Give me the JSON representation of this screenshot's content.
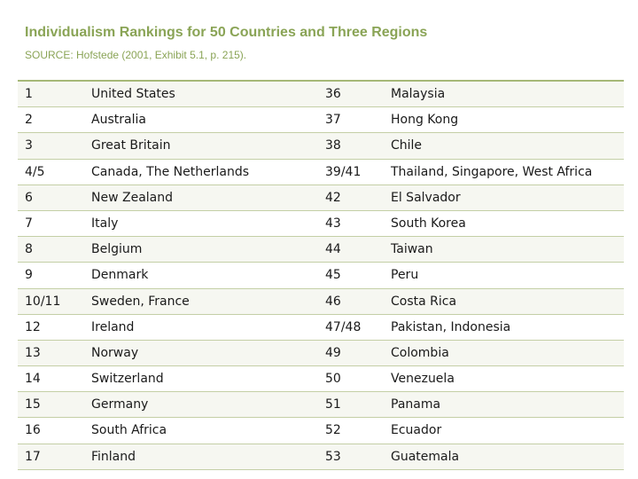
{
  "title": "Individualism Rankings for 50 Countries and Three Regions",
  "source": "SOURCE: Hofstede (2001, Exhibit 5.1, p. 215).",
  "rows": [
    {
      "rank_a": "1",
      "country_a": "United States",
      "rank_b": "36",
      "country_b": "Malaysia"
    },
    {
      "rank_a": "2",
      "country_a": "Australia",
      "rank_b": "37",
      "country_b": "Hong Kong"
    },
    {
      "rank_a": "3",
      "country_a": "Great Britain",
      "rank_b": "38",
      "country_b": "Chile"
    },
    {
      "rank_a": "4/5",
      "country_a": "Canada, The Netherlands",
      "rank_b": "39/41",
      "country_b": "Thailand, Singapore, West Africa"
    },
    {
      "rank_a": "6",
      "country_a": "New Zealand",
      "rank_b": "42",
      "country_b": "El Salvador"
    },
    {
      "rank_a": "7",
      "country_a": "Italy",
      "rank_b": "43",
      "country_b": "South Korea"
    },
    {
      "rank_a": "8",
      "country_a": "Belgium",
      "rank_b": "44",
      "country_b": "Taiwan"
    },
    {
      "rank_a": "9",
      "country_a": "Denmark",
      "rank_b": "45",
      "country_b": "Peru"
    },
    {
      "rank_a": "10/11",
      "country_a": "Sweden, France",
      "rank_b": "46",
      "country_b": "Costa Rica"
    },
    {
      "rank_a": "12",
      "country_a": "Ireland",
      "rank_b": "47/48",
      "country_b": "Pakistan, Indonesia"
    },
    {
      "rank_a": "13",
      "country_a": "Norway",
      "rank_b": "49",
      "country_b": "Colombia"
    },
    {
      "rank_a": "14",
      "country_a": "Switzerland",
      "rank_b": "50",
      "country_b": "Venezuela"
    },
    {
      "rank_a": "15",
      "country_a": "Germany",
      "rank_b": "51",
      "country_b": "Panama"
    },
    {
      "rank_a": "16",
      "country_a": "South Africa",
      "rank_b": "52",
      "country_b": "Ecuador"
    },
    {
      "rank_a": "17",
      "country_a": "Finland",
      "rank_b": "53",
      "country_b": "Guatemala"
    }
  ]
}
